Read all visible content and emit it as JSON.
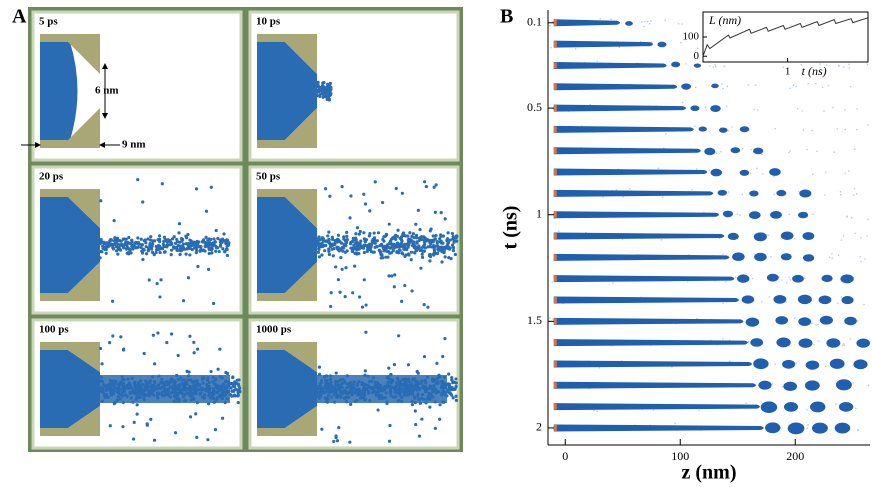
{
  "panel_a": {
    "label": "A",
    "frames": [
      "5 ps",
      "10 ps",
      "20 ps",
      "50 ps",
      "100 ps",
      "1000 ps"
    ],
    "annotations": [
      "6 nm",
      "9 nm"
    ]
  },
  "chart_data": [
    {
      "type": "jets",
      "panel_label": "B",
      "xlabel": "z (nm)",
      "ylabel": "t (ns)",
      "xlim": [
        -15,
        265
      ],
      "xticks": [
        0,
        100,
        200
      ],
      "ylim": [
        0.04,
        2.08
      ],
      "yticks": [
        0.1,
        0.5,
        1,
        1.5,
        2
      ],
      "y_inverted": true,
      "color": "#1f5fae"
    },
    {
      "type": "line",
      "ylabel": "L (nm)",
      "xlabel": "t (ns)",
      "x": [
        0,
        0.05,
        0.08,
        0.3,
        0.32,
        0.55,
        0.57,
        0.75,
        0.77,
        0.95,
        0.97,
        1.15,
        1.17,
        1.35,
        1.37,
        1.55,
        1.57,
        1.75,
        1.77,
        1.95
      ],
      "values": [
        0,
        60,
        40,
        110,
        95,
        140,
        120,
        150,
        130,
        160,
        140,
        170,
        150,
        180,
        160,
        190,
        170,
        195,
        175,
        200
      ],
      "xlim": [
        0,
        1.95
      ],
      "ylim": [
        -30,
        230
      ],
      "xticks": [
        1
      ],
      "yticks": [
        0,
        100
      ],
      "color": "#333333"
    }
  ]
}
